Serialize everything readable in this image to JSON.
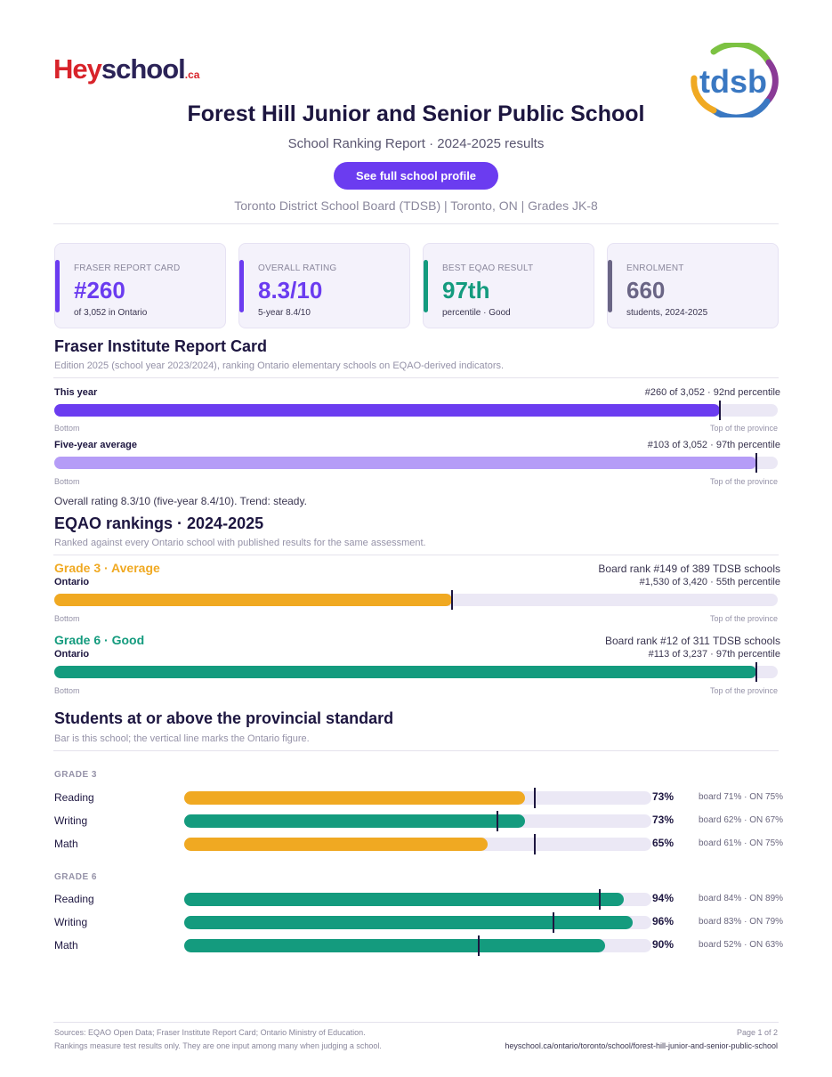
{
  "header": {
    "logo_hey": "Hey",
    "logo_school": "school",
    "logo_ca": ".ca",
    "board_logo_text": "tdsb",
    "title": "Forest Hill Junior and Senior Public School",
    "subtitle": "School Ranking Report  ·  2024-2025 results",
    "cta_label": "See full school profile",
    "meta": "Toronto District School Board (TDSB)  |  Toronto, ON  |  Grades JK-8"
  },
  "cards": [
    {
      "label": "FRASER REPORT CARD",
      "value": "#260",
      "sub": "of 3,052 in Ontario",
      "color": "#6b3cf0"
    },
    {
      "label": "OVERALL RATING",
      "value": "8.3/10",
      "sub": "5-year 8.4/10",
      "color": "#6b3cf0"
    },
    {
      "label": "BEST EQAO RESULT",
      "value": "97th",
      "sub": "percentile  ·  Good",
      "color": "#149b7e"
    },
    {
      "label": "ENROLMENT",
      "value": "660",
      "sub": "students, 2024-2025",
      "color": "#6a6585"
    }
  ],
  "fraser": {
    "title": "Fraser Institute Report Card",
    "note": "Edition 2025 (school year 2023/2024), ranking Ontario elementary schools on EQAO-derived indicators.",
    "rows": [
      {
        "label": "This year",
        "right": "#260 of 3,052  ·  92nd percentile",
        "percentile": 92,
        "color": "#6b3cf0"
      },
      {
        "label": "Five-year average",
        "right": "#103 of 3,052  ·  97th percentile",
        "percentile": 97,
        "color": "#b59cf7"
      }
    ],
    "bottom_label": "Bottom",
    "top_label": "Top of the province",
    "summary": "Overall rating 8.3/10 (five-year 8.4/10). Trend: steady."
  },
  "eqao": {
    "title": "EQAO rankings  ·  2024-2025",
    "note": "Ranked against every Ontario school with published results for the same assessment.",
    "rows": [
      {
        "head": "Grade 3  ·  Average",
        "sublabel": "Ontario",
        "board": "Board rank #149 of 389 TDSB schools",
        "province": "#1,530 of 3,420  ·  55th percentile",
        "percentile": 55,
        "color": "#f0a922"
      },
      {
        "head": "Grade 6  ·  Good",
        "sublabel": "Ontario",
        "board": "Board rank #12 of 311 TDSB schools",
        "province": "#113 of 3,237  ·  97th percentile",
        "percentile": 97,
        "color": "#149b7e"
      }
    ],
    "bottom_label": "Bottom",
    "top_label": "Top of the province"
  },
  "standard": {
    "title": "Students at or above the provincial standard",
    "note": "Bar is this school; the vertical line marks the Ontario figure.",
    "groups": [
      {
        "label": "GRADE 3",
        "items": [
          {
            "subject": "Reading",
            "pct": 73,
            "pct_label": "73%",
            "ontario": 75,
            "compare": "board 71%  ·  ON 75%",
            "color": "#f0a922"
          },
          {
            "subject": "Writing",
            "pct": 73,
            "pct_label": "73%",
            "ontario": 67,
            "compare": "board 62%  ·  ON 67%",
            "color": "#149b7e"
          },
          {
            "subject": "Math",
            "pct": 65,
            "pct_label": "65%",
            "ontario": 75,
            "compare": "board 61%  ·  ON 75%",
            "color": "#f0a922"
          }
        ]
      },
      {
        "label": "GRADE 6",
        "items": [
          {
            "subject": "Reading",
            "pct": 94,
            "pct_label": "94%",
            "ontario": 89,
            "compare": "board 84%  ·  ON 89%",
            "color": "#149b7e"
          },
          {
            "subject": "Writing",
            "pct": 96,
            "pct_label": "96%",
            "ontario": 79,
            "compare": "board 83%  ·  ON 79%",
            "color": "#149b7e"
          },
          {
            "subject": "Math",
            "pct": 90,
            "pct_label": "90%",
            "ontario": 63,
            "compare": "board 52%  ·  ON 63%",
            "color": "#149b7e"
          }
        ]
      }
    ]
  },
  "footer": {
    "sources": "Sources: EQAO Open Data; Fraser Institute Report Card; Ontario Ministry of Education.",
    "disclaimer": "Rankings measure test results only. They are one input among many when judging a school.",
    "page": "Page 1 of 2",
    "url": "heyschool.ca/ontario/toronto/school/forest-hill-junior-and-senior-public-school"
  }
}
